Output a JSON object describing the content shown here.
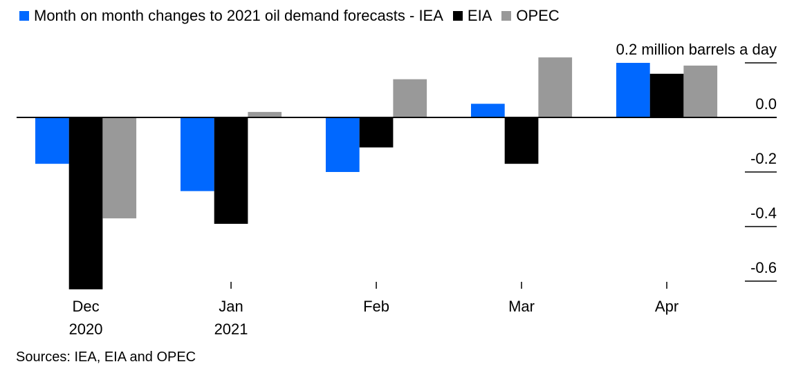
{
  "chart_data": {
    "type": "bar",
    "title": "Month on month changes to 2021 oil demand forecasts",
    "legend_prefix": "Month on month changes to 2021 oil demand forecasts - ",
    "legend_position": "top-left",
    "categories": [
      {
        "label": "Dec",
        "sub": "2020"
      },
      {
        "label": "Jan",
        "sub": "2021"
      },
      {
        "label": "Feb",
        "sub": ""
      },
      {
        "label": "Mar",
        "sub": ""
      },
      {
        "label": "Apr",
        "sub": ""
      }
    ],
    "series": [
      {
        "name": "IEA",
        "color": "#0068ff",
        "values": [
          -0.17,
          -0.27,
          -0.2,
          0.05,
          0.2
        ]
      },
      {
        "name": "EIA",
        "color": "#000000",
        "values": [
          -0.63,
          -0.39,
          -0.11,
          -0.17,
          0.16
        ]
      },
      {
        "name": "OPEC",
        "color": "#999999",
        "values": [
          -0.37,
          0.02,
          0.14,
          0.22,
          0.19
        ]
      }
    ],
    "ylabel": "million barrels a day",
    "y_ticks": [
      0.2,
      0.0,
      -0.2,
      -0.4,
      -0.6
    ],
    "y_tick_labels": [
      "0.2 million barrels a day",
      "0.0",
      "-0.2",
      "-0.4",
      "-0.6"
    ],
    "ylim": [
      -0.63,
      0.22
    ],
    "axis_position": "right",
    "grid": false
  },
  "footer": {
    "sources": "Sources: IEA, EIA and OPEC"
  }
}
